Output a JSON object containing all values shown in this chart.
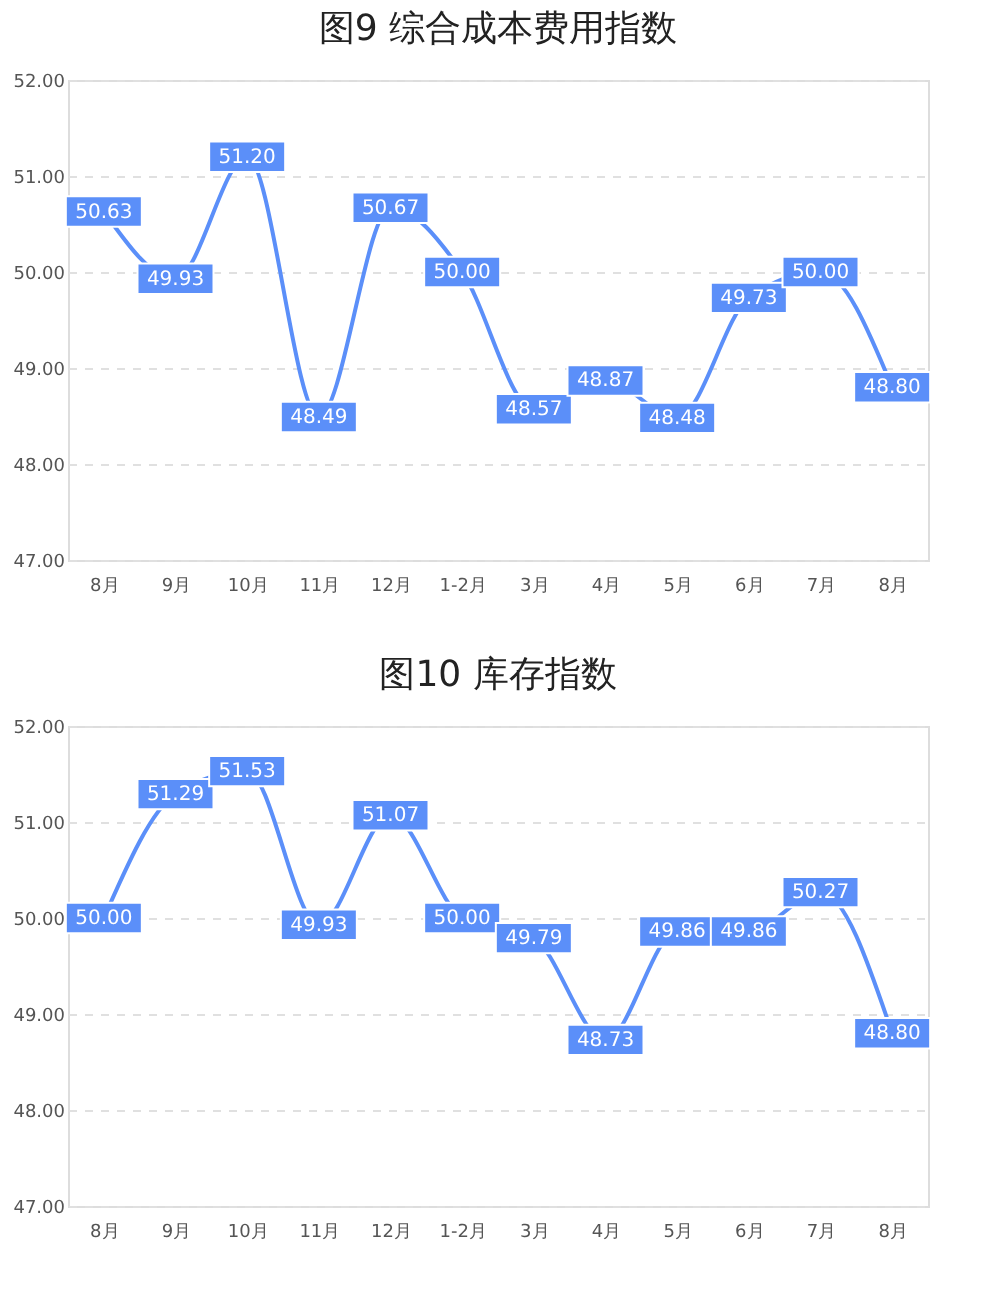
{
  "chart_data": [
    {
      "type": "line",
      "title": "图9  综合成本费用指数",
      "categories": [
        "8月",
        "9月",
        "10月",
        "11月",
        "12月",
        "1-2月",
        "3月",
        "4月",
        "5月",
        "6月",
        "7月",
        "8月"
      ],
      "series": [
        {
          "color": "#5b8ff9",
          "marker": "square",
          "values": [
            50.63,
            49.93,
            51.2,
            48.49,
            50.67,
            50.0,
            48.57,
            48.87,
            48.48,
            49.73,
            50.0,
            48.8
          ],
          "value_labels": [
            "50.63",
            "49.93",
            "51.20",
            "48.49",
            "50.67",
            "50.00",
            "48.57",
            "48.87",
            "48.48",
            "49.73",
            "50.00",
            "48.80"
          ]
        }
      ],
      "ylim": [
        47,
        52
      ],
      "yticks": [
        {
          "value": 47,
          "label": "47.00"
        },
        {
          "value": 48,
          "label": "48.00"
        },
        {
          "value": 49,
          "label": "49.00"
        },
        {
          "value": 50,
          "label": "50.00"
        },
        {
          "value": 51,
          "label": "51.00"
        },
        {
          "value": 52,
          "label": "52.00"
        }
      ],
      "grid": "y"
    },
    {
      "type": "line",
      "title": "图10  库存指数",
      "categories": [
        "8月",
        "9月",
        "10月",
        "11月",
        "12月",
        "1-2月",
        "3月",
        "4月",
        "5月",
        "6月",
        "7月",
        "8月"
      ],
      "series": [
        {
          "color": "#5b8ff9",
          "marker": "square",
          "values": [
            50.0,
            51.29,
            51.53,
            49.93,
            51.07,
            50.0,
            49.79,
            48.73,
            49.86,
            49.86,
            50.27,
            48.8
          ],
          "value_labels": [
            "50.00",
            "51.29",
            "51.53",
            "49.93",
            "51.07",
            "50.00",
            "49.79",
            "48.73",
            "49.86",
            "49.86",
            "50.27",
            "48.80"
          ]
        }
      ],
      "ylim": [
        47,
        52
      ],
      "yticks": [
        {
          "value": 47,
          "label": "47.00"
        },
        {
          "value": 48,
          "label": "48.00"
        },
        {
          "value": 49,
          "label": "49.00"
        },
        {
          "value": 50,
          "label": "50.00"
        },
        {
          "value": 51,
          "label": "51.00"
        },
        {
          "value": 52,
          "label": "52.00"
        }
      ],
      "grid": "y"
    }
  ]
}
